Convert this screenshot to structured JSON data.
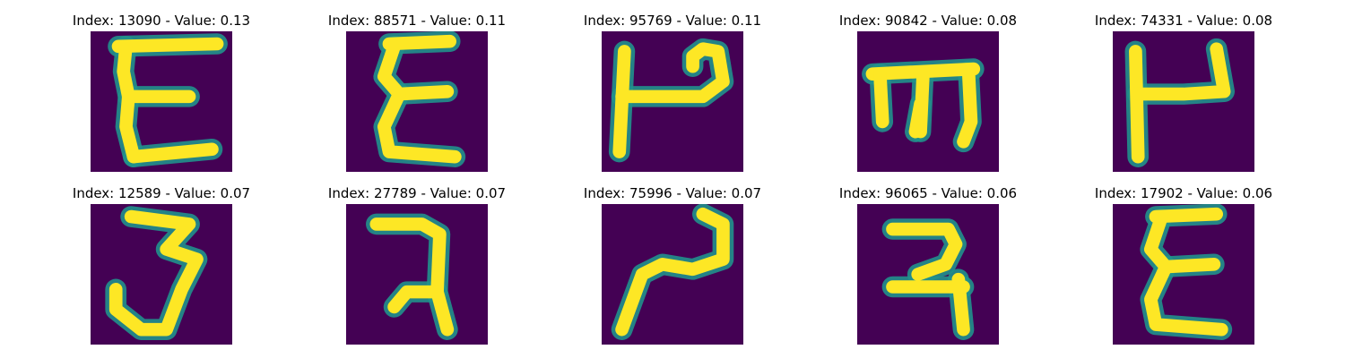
{
  "colors": {
    "background": "#440154",
    "stroke_mid": "#21918c",
    "stroke_peak": "#fde725"
  },
  "panels": [
    {
      "index": "13090",
      "value": "0.13",
      "title": "Index: 13090 - Value: 0.13",
      "glyph": "E-shape"
    },
    {
      "index": "88571",
      "value": "0.11",
      "title": "Index: 88571 - Value: 0.11",
      "glyph": "epsilon-shape"
    },
    {
      "index": "95769",
      "value": "0.11",
      "title": "Index: 95769 - Value: 0.11",
      "glyph": "P-hook-shape"
    },
    {
      "index": "90842",
      "value": "0.08",
      "title": "Index: 90842 - Value: 0.08",
      "glyph": "m-shape"
    },
    {
      "index": "74331",
      "value": "0.08",
      "title": "Index: 74331 - Value: 0.08",
      "glyph": "U-bar-shape"
    },
    {
      "index": "12589",
      "value": "0.07",
      "title": "Index: 12589 - Value: 0.07",
      "glyph": "three-shape"
    },
    {
      "index": "27789",
      "value": "0.07",
      "title": "Index: 27789 - Value: 0.07",
      "glyph": "reversed-two-shape"
    },
    {
      "index": "75996",
      "value": "0.07",
      "title": "Index: 75996 - Value: 0.07",
      "glyph": "tilde-shape"
    },
    {
      "index": "96065",
      "value": "0.06",
      "title": "Index: 96065 - Value: 0.06",
      "glyph": "reversed-two-bar-shape"
    },
    {
      "index": "17902",
      "value": "0.06",
      "title": "Index: 17902 - Value: 0.06",
      "glyph": "epsilon-shape"
    }
  ]
}
